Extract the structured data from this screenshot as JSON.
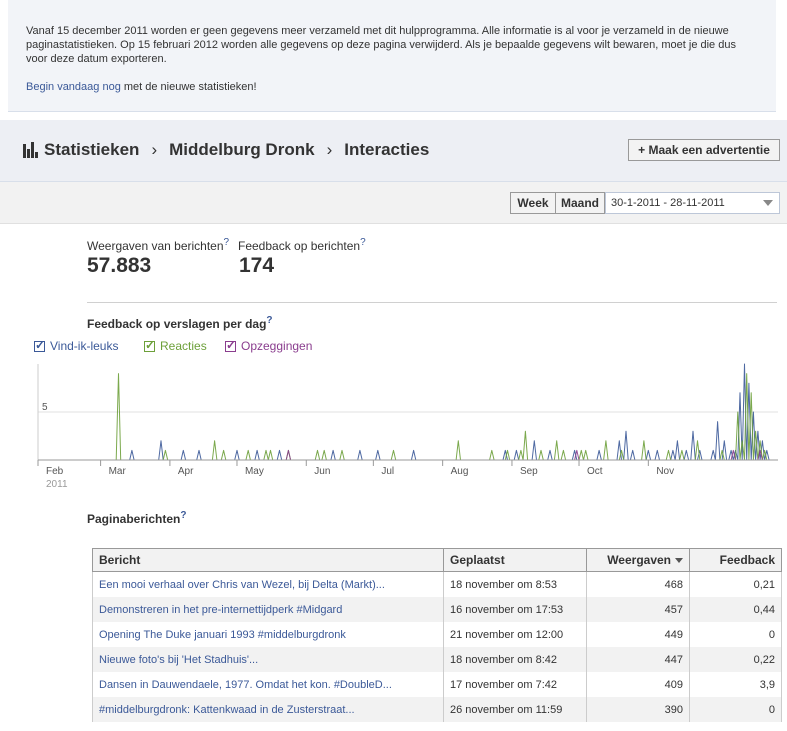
{
  "notice": {
    "text": "Vanaf 15 december 2011 worden er geen gegevens meer verzameld met dit hulpprogramma. Alle informatie is al voor je verzameld in de nieuwe paginastatistieken. Op 15 februari 2012 worden alle gegevens op deze pagina verwijderd. Als je bepaalde gegevens wilt bewaren, moet je die dus voor deze datum exporteren.",
    "link_label": "Begin vandaag nog",
    "link_suffix": " met de nieuwe statistieken!"
  },
  "breadcrumb": {
    "items": [
      "Statistieken",
      "Middelburg Dronk",
      "Interacties"
    ],
    "separator": "›"
  },
  "ad_button": {
    "icon": "plus",
    "label": "Maak een advertentie"
  },
  "toolbar": {
    "week_label": "Week",
    "month_label": "Maand",
    "date_range": "30-1-2011 - 28-11-2011"
  },
  "kpis": [
    {
      "label": "Weergaven van berichten",
      "help": "?",
      "value": "57.883"
    },
    {
      "label": "Feedback op berichten",
      "help": "?",
      "value": "174"
    }
  ],
  "chart_section": {
    "title": "Feedback op verslagen per dag",
    "help": "?"
  },
  "colors": {
    "likes": "#3b5998",
    "comments": "#6da03a",
    "unsubscribes": "#8a3d8e",
    "link": "#3b5998"
  },
  "chart_data": {
    "type": "line",
    "legend": [
      "Vind-ik-leuks",
      "Reacties",
      "Opzeggingen"
    ],
    "x_tick_labels": [
      "Feb",
      "Mar",
      "Apr",
      "May",
      "Jun",
      "Jul",
      "Aug",
      "Sep",
      "Oct",
      "Nov"
    ],
    "x_year_label": "2011",
    "y_ticks": [
      5
    ],
    "ylim": [
      0,
      10
    ],
    "grid": true,
    "series": [
      {
        "name": "Vind-ik-leuks",
        "points": [
          [
            42,
            1
          ],
          [
            55,
            2
          ],
          [
            65,
            1
          ],
          [
            72,
            1
          ],
          [
            89,
            1
          ],
          [
            98,
            1
          ],
          [
            108,
            1
          ],
          [
            132,
            1
          ],
          [
            144,
            1
          ],
          [
            152,
            1
          ],
          [
            168,
            1
          ],
          [
            209,
            1
          ],
          [
            214,
            1
          ],
          [
            222,
            2
          ],
          [
            229,
            1
          ],
          [
            240,
            1
          ],
          [
            251,
            1
          ],
          [
            260,
            2
          ],
          [
            263,
            3
          ],
          [
            266,
            1
          ],
          [
            273,
            1
          ],
          [
            277,
            1
          ],
          [
            284,
            1
          ],
          [
            286,
            2
          ],
          [
            290,
            1
          ],
          [
            293,
            3
          ],
          [
            296,
            1
          ],
          [
            302,
            1
          ],
          [
            304,
            4
          ],
          [
            307,
            2
          ],
          [
            310,
            1
          ],
          [
            312,
            1
          ],
          [
            314,
            7
          ],
          [
            316,
            10
          ],
          [
            318,
            8
          ],
          [
            320,
            5
          ],
          [
            322,
            3
          ],
          [
            324,
            2
          ],
          [
            326,
            1
          ]
        ]
      },
      {
        "name": "Reacties",
        "points": [
          [
            36,
            9
          ],
          [
            57,
            1
          ],
          [
            79,
            2
          ],
          [
            83,
            1
          ],
          [
            94,
            1
          ],
          [
            102,
            1
          ],
          [
            104,
            1
          ],
          [
            112,
            1
          ],
          [
            125,
            1
          ],
          [
            128,
            1
          ],
          [
            136,
            1
          ],
          [
            159,
            1
          ],
          [
            188,
            2
          ],
          [
            203,
            1
          ],
          [
            210,
            1
          ],
          [
            216,
            1
          ],
          [
            218,
            3
          ],
          [
            225,
            1
          ],
          [
            232,
            2
          ],
          [
            235,
            1
          ],
          [
            243,
            1
          ],
          [
            245,
            1
          ],
          [
            254,
            2
          ],
          [
            261,
            1
          ],
          [
            271,
            2
          ],
          [
            282,
            1
          ],
          [
            288,
            1
          ],
          [
            295,
            2
          ],
          [
            306,
            1
          ],
          [
            313,
            5
          ],
          [
            315,
            2
          ],
          [
            317,
            9
          ],
          [
            319,
            7
          ],
          [
            321,
            3
          ],
          [
            323,
            2
          ],
          [
            325,
            1
          ]
        ]
      },
      {
        "name": "Opzeggingen",
        "points": [
          [
            112,
            1
          ],
          [
            241,
            1
          ],
          [
            311,
            1
          ],
          [
            323,
            1
          ]
        ]
      }
    ]
  },
  "posts_section": {
    "title": "Paginaberichten",
    "help": "?"
  },
  "posts_table": {
    "headers": [
      "Bericht",
      "Geplaatst",
      "Weergaven",
      "Feedback"
    ],
    "rows": [
      {
        "message": "Een mooi verhaal over Chris van Wezel, bij Delta (Markt)...",
        "posted": "18 november om 8:53",
        "views": "468",
        "feedback": "0,21"
      },
      {
        "message": "Demonstreren in het pre-internettijdperk #Midgard",
        "posted": "16 november om 17:53",
        "views": "457",
        "feedback": "0,44"
      },
      {
        "message": "Opening The Duke januari 1993 #middelburgdronk",
        "posted": "21 november om 12:00",
        "views": "449",
        "feedback": "0"
      },
      {
        "message": "Nieuwe foto's bij 'Het Stadhuis'...",
        "posted": "18 november om 8:42",
        "views": "447",
        "feedback": "0,22"
      },
      {
        "message": "Dansen in Dauwendaele, 1977. Omdat het kon. #DoubleD...",
        "posted": "17 november om 7:42",
        "views": "409",
        "feedback": "3,9"
      },
      {
        "message": "#middelburgdronk: Kattenkwaad in de Zusterstraat...",
        "posted": "26 november om 11:59",
        "views": "390",
        "feedback": "0"
      }
    ]
  }
}
